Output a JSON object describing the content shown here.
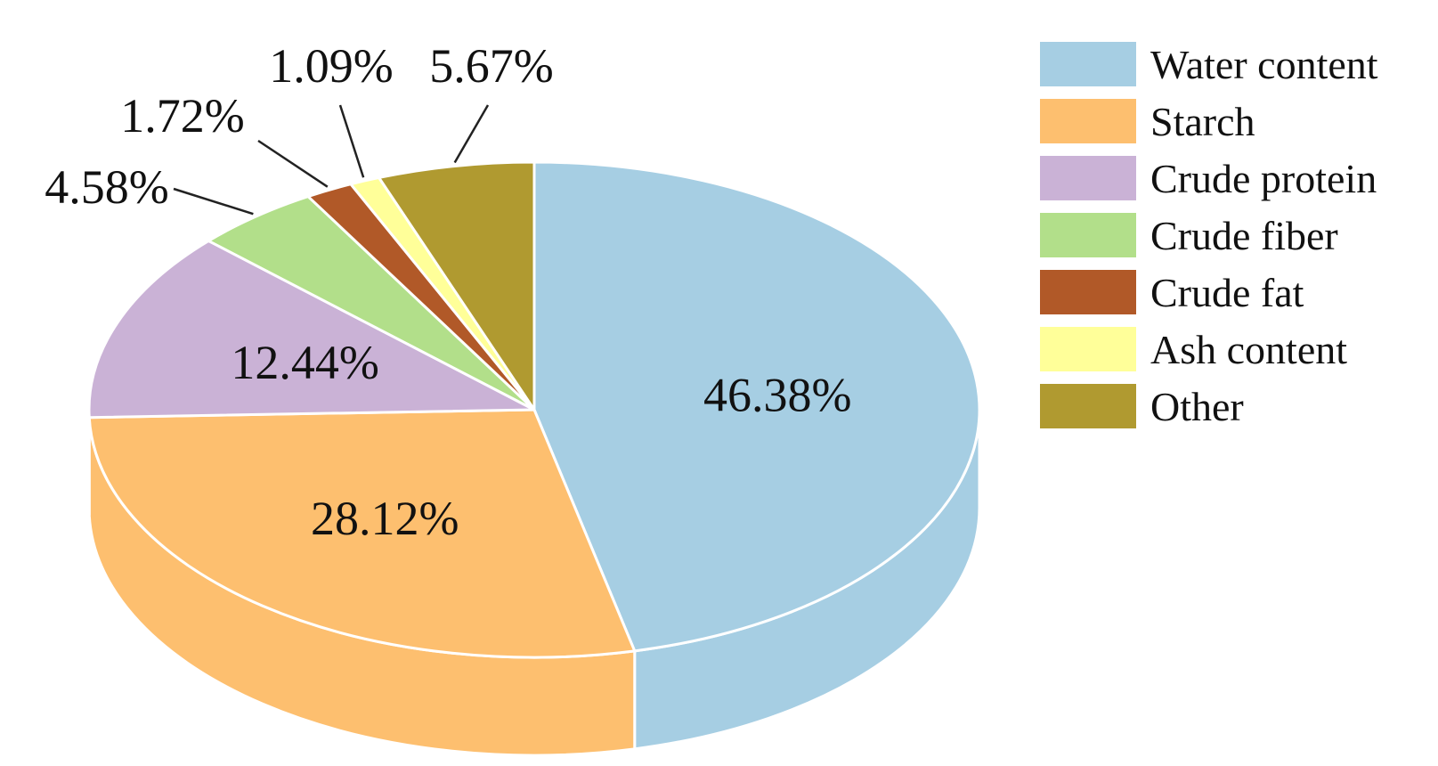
{
  "chart_data": {
    "type": "pie",
    "style": "3d",
    "start_angle_deg": 90,
    "direction": "clockwise",
    "legend_position": "right",
    "slices": [
      {
        "name": "Water content",
        "value": 46.38,
        "label": "46.38%",
        "color": "#a6cee3"
      },
      {
        "name": "Starch",
        "value": 28.12,
        "label": "28.12%",
        "color": "#fdbf6f"
      },
      {
        "name": "Crude protein",
        "value": 12.44,
        "label": "12.44%",
        "color": "#cab2d6"
      },
      {
        "name": "Crude fiber",
        "value": 4.58,
        "label": "4.58%",
        "color": "#b2df8a"
      },
      {
        "name": "Crude fat",
        "value": 1.72,
        "label": "1.72%",
        "color": "#b15928"
      },
      {
        "name": "Ash content",
        "value": 1.09,
        "label": "1.09%",
        "color": "#ffff99"
      },
      {
        "name": "Other",
        "value": 5.67,
        "label": "5.67%",
        "color": "#b09a30"
      }
    ]
  }
}
